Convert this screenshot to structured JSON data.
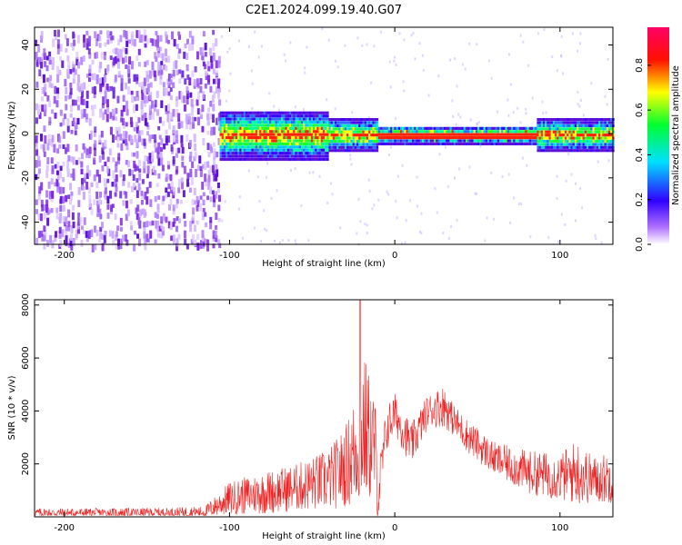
{
  "figure_title": "C2E1.2024.099.19.40.G07",
  "chart_data": [
    {
      "type": "heatmap",
      "xlabel": "Height of straight line (km)",
      "ylabel": "Frequency (Hz)",
      "xlim": [
        -218,
        132
      ],
      "ylim": [
        -50,
        48
      ],
      "xticks": [
        -200,
        -100,
        0,
        100
      ],
      "xtick_labels": [
        "-200",
        "-100",
        "0",
        "100"
      ],
      "yticks": [
        -40,
        -20,
        0,
        20,
        40
      ],
      "ytick_labels": [
        "-40",
        "-20",
        "0",
        "20",
        "40"
      ],
      "colorbar": {
        "label": "Normalized spectral amplitude",
        "range": [
          0,
          0.97
        ],
        "ticks": [
          0.0,
          0.2,
          0.4,
          0.6,
          0.8
        ],
        "tick_labels": [
          "0.0",
          "0.2",
          "0.4",
          "0.6",
          "0.8"
        ],
        "colors": [
          "#ffffff",
          "#6a0dad",
          "#2a00ff",
          "#00e5ff",
          "#00ff3a",
          "#ffff00",
          "#ff0000",
          "#ff0066"
        ]
      },
      "features": [
        {
          "name": "noise",
          "x_range": [
            -218,
            -106
          ],
          "y_range": [
            -50,
            48
          ],
          "amplitude": 0.15
        },
        {
          "name": "signal",
          "x_range": [
            -106,
            132
          ],
          "center_hz": 0,
          "amplitude": 0.9
        }
      ],
      "grid": false
    },
    {
      "type": "line",
      "xlabel": "Height of straight line (km)",
      "ylabel": "SNR (10 * v/v)",
      "xlim": [
        -218,
        132
      ],
      "ylim": [
        0,
        8200
      ],
      "xticks": [
        -200,
        -100,
        0,
        100
      ],
      "xtick_labels": [
        "-200",
        "-100",
        "0",
        "100"
      ],
      "yticks": [
        2000,
        4000,
        6000,
        8000
      ],
      "ytick_labels": [
        "2000",
        "4000",
        "6000",
        "8000"
      ],
      "color": "#ee2222",
      "envelope": {
        "x": [
          -218,
          -180,
          -140,
          -115,
          -100,
          -80,
          -60,
          -40,
          -30,
          -22,
          -19,
          -12,
          -10,
          -5,
          0,
          10,
          20,
          30,
          35,
          45,
          60,
          80,
          100,
          110,
          120,
          132
        ],
        "y_mean": [
          150,
          150,
          160,
          180,
          700,
          900,
          1100,
          1400,
          1900,
          2700,
          3400,
          2600,
          800,
          3300,
          3900,
          2700,
          4000,
          4200,
          3700,
          3000,
          2200,
          1700,
          1500,
          1700,
          1400,
          1500
        ],
        "y_noise": [
          200,
          200,
          200,
          250,
          700,
          900,
          1000,
          1300,
          1700,
          2600,
          3200,
          2300,
          1200,
          1000,
          900,
          900,
          700,
          900,
          700,
          700,
          700,
          900,
          1000,
          1400,
          1000,
          1100
        ]
      },
      "peak": {
        "x": -21,
        "y": 8200
      },
      "grid": false
    }
  ]
}
